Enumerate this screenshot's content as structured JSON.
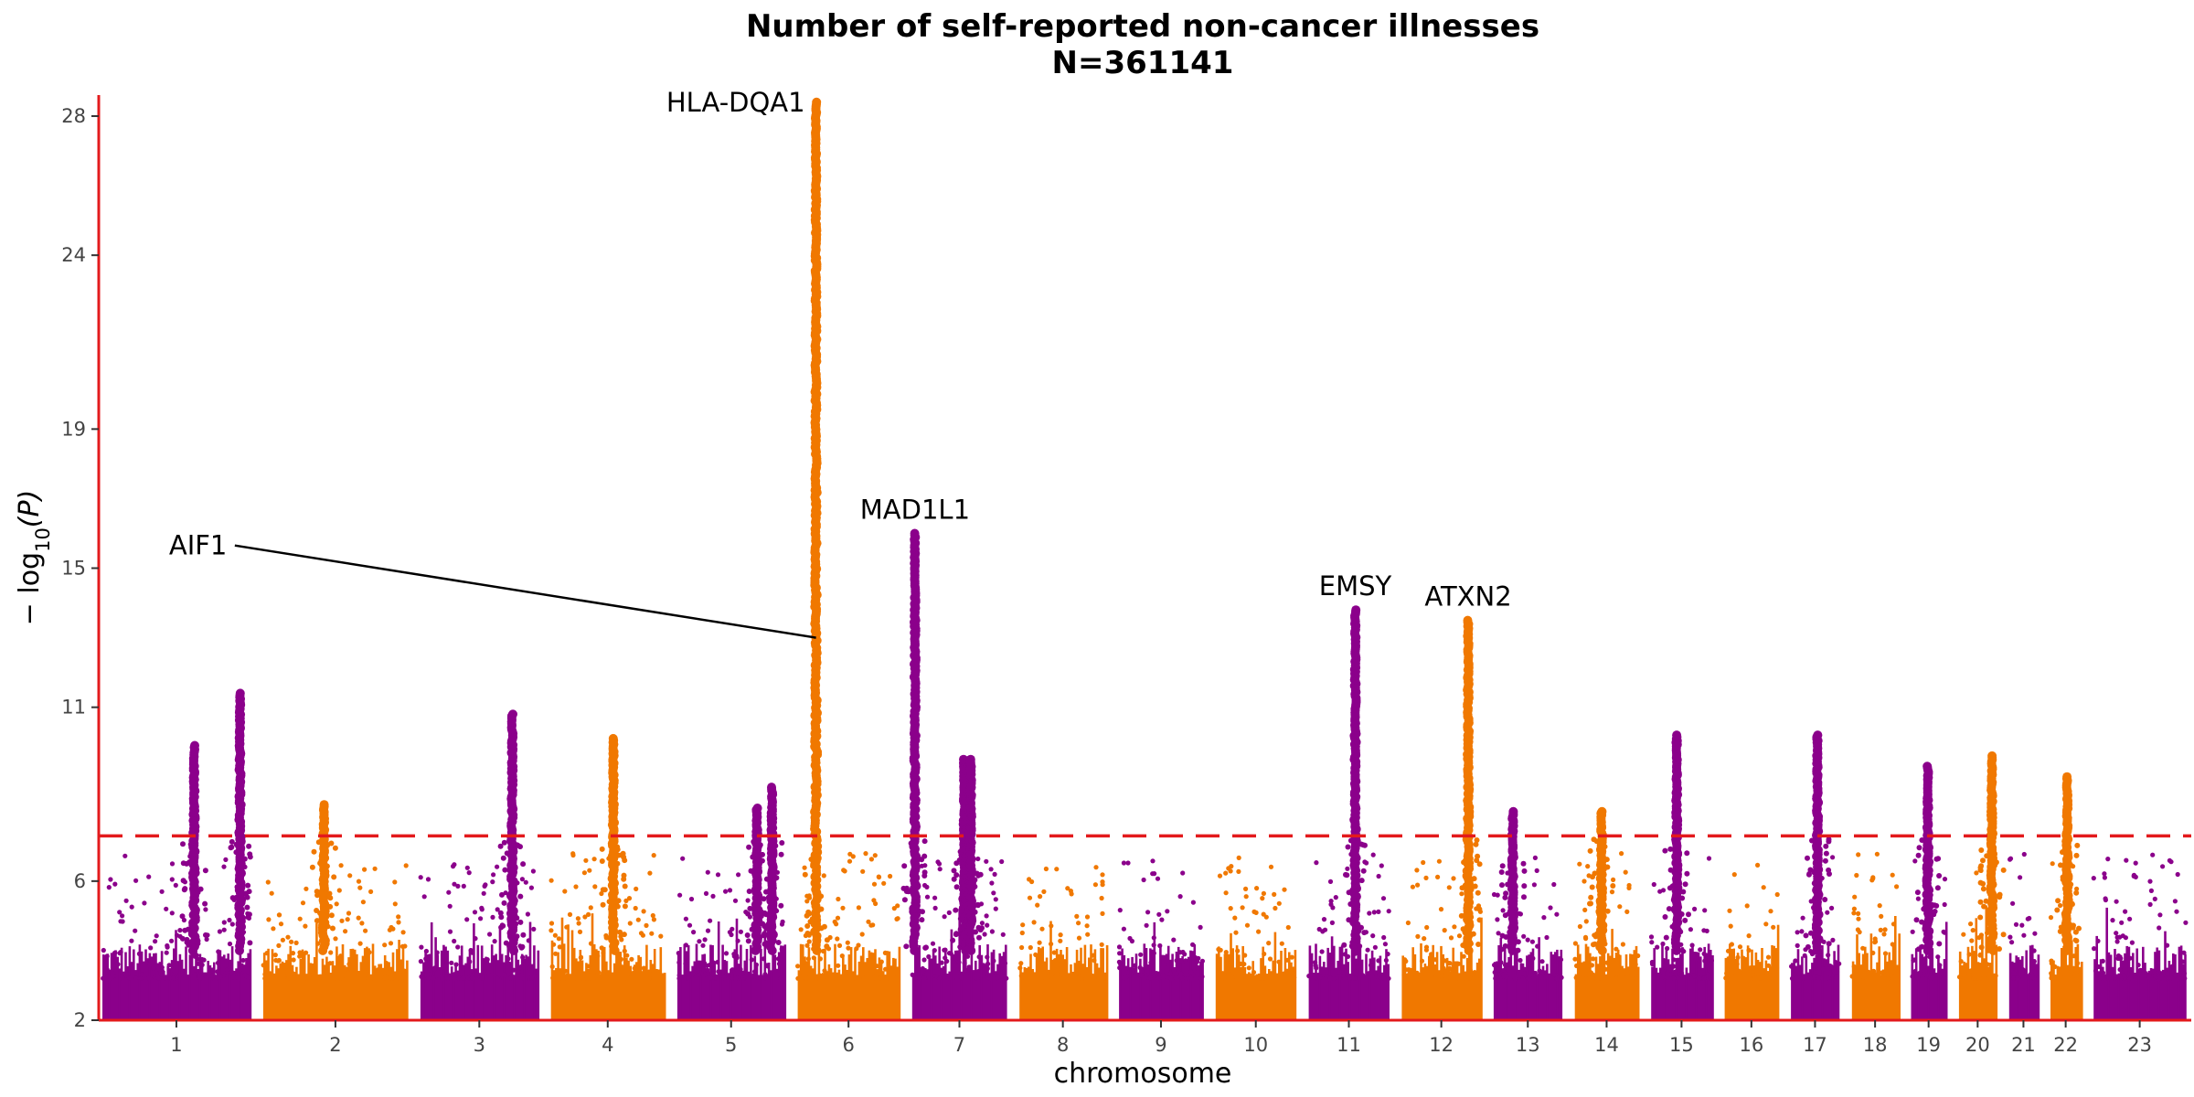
{
  "chart_data": {
    "type": "scatter",
    "subtype": "manhattan",
    "title": "Number of self-reported non-cancer illnesses",
    "subtitle": "N=361141",
    "xlabel": "chromosome",
    "ylabel": "− log10(P)",
    "ylabel_parts": {
      "prefix": "− log",
      "sub": "10",
      "suffix": "(P)"
    },
    "ylim": [
      2,
      28.5
    ],
    "yticks": [
      2,
      6,
      11,
      15,
      19,
      24,
      28
    ],
    "significance_line": 7.3,
    "grid": false,
    "colors": {
      "odd": "#8B008B",
      "even": "#F07800",
      "line": "#E31A1C",
      "axis": "#E31A1C",
      "label_line": "#000000"
    },
    "chromosomes": [
      {
        "label": "1",
        "lengths": 249
      },
      {
        "label": "2",
        "lengths": 243
      },
      {
        "label": "3",
        "lengths": 198
      },
      {
        "label": "4",
        "lengths": 191
      },
      {
        "label": "5",
        "lengths": 181
      },
      {
        "label": "6",
        "lengths": 171
      },
      {
        "label": "7",
        "lengths": 159
      },
      {
        "label": "8",
        "lengths": 146
      },
      {
        "label": "9",
        "lengths": 141
      },
      {
        "label": "10",
        "lengths": 135
      },
      {
        "label": "11",
        "lengths": 135
      },
      {
        "label": "12",
        "lengths": 133
      },
      {
        "label": "13",
        "lengths": 115
      },
      {
        "label": "14",
        "lengths": 107
      },
      {
        "label": "15",
        "lengths": 102
      },
      {
        "label": "16",
        "lengths": 90
      },
      {
        "label": "17",
        "lengths": 81
      },
      {
        "label": "18",
        "lengths": 78
      },
      {
        "label": "19",
        "lengths": 59
      },
      {
        "label": "20",
        "lengths": 63
      },
      {
        "label": "21",
        "lengths": 48
      },
      {
        "label": "22",
        "lengths": 51
      },
      {
        "label": "23",
        "lengths": 155
      }
    ],
    "peaks": [
      {
        "chr": "1",
        "pos": 0.62,
        "max_p": 9.9
      },
      {
        "chr": "1",
        "pos": 0.93,
        "max_p": 11.4
      },
      {
        "chr": "2",
        "pos": 0.42,
        "max_p": 8.2
      },
      {
        "chr": "3",
        "pos": 0.78,
        "max_p": 10.8
      },
      {
        "chr": "4",
        "pos": 0.55,
        "max_p": 10.1
      },
      {
        "chr": "5",
        "pos": 0.74,
        "max_p": 8.1
      },
      {
        "chr": "5",
        "pos": 0.88,
        "max_p": 8.7
      },
      {
        "chr": "6",
        "pos": 0.18,
        "max_p": 28.4
      },
      {
        "chr": "7",
        "pos": 0.03,
        "max_p": 16.0
      },
      {
        "chr": "7",
        "pos": 0.55,
        "max_p": 9.5
      },
      {
        "chr": "7",
        "pos": 0.62,
        "max_p": 9.5
      },
      {
        "chr": "11",
        "pos": 0.58,
        "max_p": 13.8
      },
      {
        "chr": "12",
        "pos": 0.84,
        "max_p": 13.5
      },
      {
        "chr": "13",
        "pos": 0.28,
        "max_p": 8.0
      },
      {
        "chr": "14",
        "pos": 0.42,
        "max_p": 8.0
      },
      {
        "chr": "15",
        "pos": 0.42,
        "max_p": 10.2
      },
      {
        "chr": "17",
        "pos": 0.55,
        "max_p": 10.2
      },
      {
        "chr": "19",
        "pos": 0.48,
        "max_p": 9.3
      },
      {
        "chr": "20",
        "pos": 0.88,
        "max_p": 9.6
      },
      {
        "chr": "22",
        "pos": 0.55,
        "max_p": 9.0
      }
    ],
    "annotations": [
      {
        "text": "HLA-DQA1",
        "chr": "6",
        "pos": 0.18,
        "y": 28.4,
        "anchor": "end"
      },
      {
        "text": "MAD1L1",
        "chr": "7",
        "pos": 0.03,
        "y": 16.0,
        "anchor": "middle"
      },
      {
        "text": "EMSY",
        "chr": "11",
        "pos": 0.58,
        "y": 13.8,
        "anchor": "middle"
      },
      {
        "text": "ATXN2",
        "chr": "12",
        "pos": 0.84,
        "y": 13.5,
        "anchor": "middle"
      },
      {
        "text": "AIF1",
        "chr": "6",
        "pos": 0.18,
        "y": 13.0,
        "anchor": "start",
        "label_at": {
          "chr": "1",
          "pos": 0.45,
          "y": 15.6
        }
      }
    ]
  }
}
